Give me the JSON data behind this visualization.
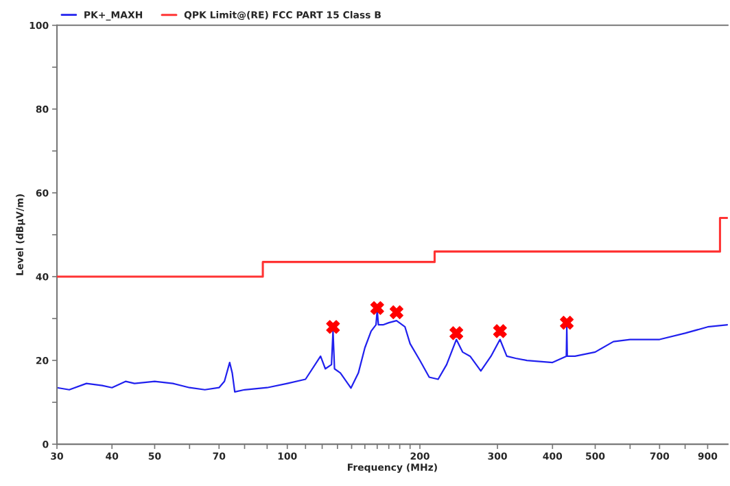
{
  "chart_data": {
    "type": "line",
    "xlabel": "Frequency (MHz)",
    "ylabel": "Level (dBµV/m)",
    "log": "x",
    "grid": false,
    "legend": "top",
    "xlim": [
      30,
      1000
    ],
    "ylim": [
      0,
      100
    ],
    "xticks": [
      30,
      40,
      50,
      {
        "value": 60,
        "label": null
      },
      70,
      {
        "value": 80,
        "label": null
      },
      {
        "value": 90,
        "label": null
      },
      100,
      {
        "value": 110,
        "label": null
      },
      {
        "value": 120,
        "label": null
      },
      {
        "value": 130,
        "label": null
      },
      {
        "value": 140,
        "label": null
      },
      {
        "value": 150,
        "label": null
      },
      {
        "value": 160,
        "label": null
      },
      {
        "value": 170,
        "label": null
      },
      {
        "value": 180,
        "label": null
      },
      {
        "value": 190,
        "label": null
      },
      200,
      300,
      400,
      500,
      {
        "value": 600,
        "label": null
      },
      700,
      {
        "value": 800,
        "label": null
      },
      900
    ],
    "yticks": [
      0,
      {
        "value": 10,
        "label": null
      },
      20,
      {
        "value": 30,
        "label": null
      },
      40,
      {
        "value": 50,
        "label": null
      },
      60,
      {
        "value": 70,
        "label": null
      },
      80,
      {
        "value": 90,
        "label": null
      },
      100
    ],
    "series": [
      {
        "name": "PK+_MAXH",
        "color": "#2020ee",
        "marker": "none",
        "x": [
          30,
          32,
          35,
          38,
          40,
          43,
          45,
          50,
          55,
          60,
          65,
          70,
          72,
          74,
          75,
          76,
          80,
          90,
          100,
          110,
          119,
          122,
          126,
          127,
          128,
          132,
          139.5,
          145,
          150,
          155,
          159,
          160,
          161,
          165,
          170,
          177,
          185,
          190,
          200,
          210,
          220,
          230,
          242,
          250,
          260,
          275,
          290,
          304,
          315,
          330,
          350,
          400,
          430,
          431,
          432,
          450,
          500,
          550,
          600,
          700,
          800,
          900,
          1000
        ],
        "values": [
          13.5,
          13,
          14.5,
          14,
          13.5,
          15,
          14.5,
          15,
          14.5,
          13.5,
          13,
          13.5,
          15,
          19.5,
          17,
          12.5,
          13,
          13.5,
          14.5,
          15.5,
          21,
          18,
          19,
          27,
          18,
          17,
          13.4,
          17,
          23,
          27,
          28.5,
          32,
          28.5,
          28.5,
          29,
          29.5,
          28,
          24,
          20,
          16,
          15.5,
          19,
          25,
          22,
          21,
          17.5,
          21,
          25,
          21,
          20.5,
          20,
          19.5,
          21,
          28,
          21,
          21,
          22,
          24.5,
          25,
          25,
          26.5,
          28,
          28.5
        ]
      },
      {
        "name": "QPK Limit@(RE) FCC PART 15 Class B",
        "type": "step",
        "color": "#ff3333",
        "marker": "none",
        "x": [
          30,
          88,
          216,
          960,
          1000
        ],
        "values": [
          40,
          43.5,
          46,
          54,
          54
        ]
      },
      {
        "type": "scatter",
        "color": "#ff0000",
        "marker": "cross",
        "x": [
          127,
          160,
          177,
          242,
          304,
          431
        ],
        "values": [
          28,
          32.5,
          31.5,
          26.5,
          27,
          29
        ]
      }
    ]
  }
}
